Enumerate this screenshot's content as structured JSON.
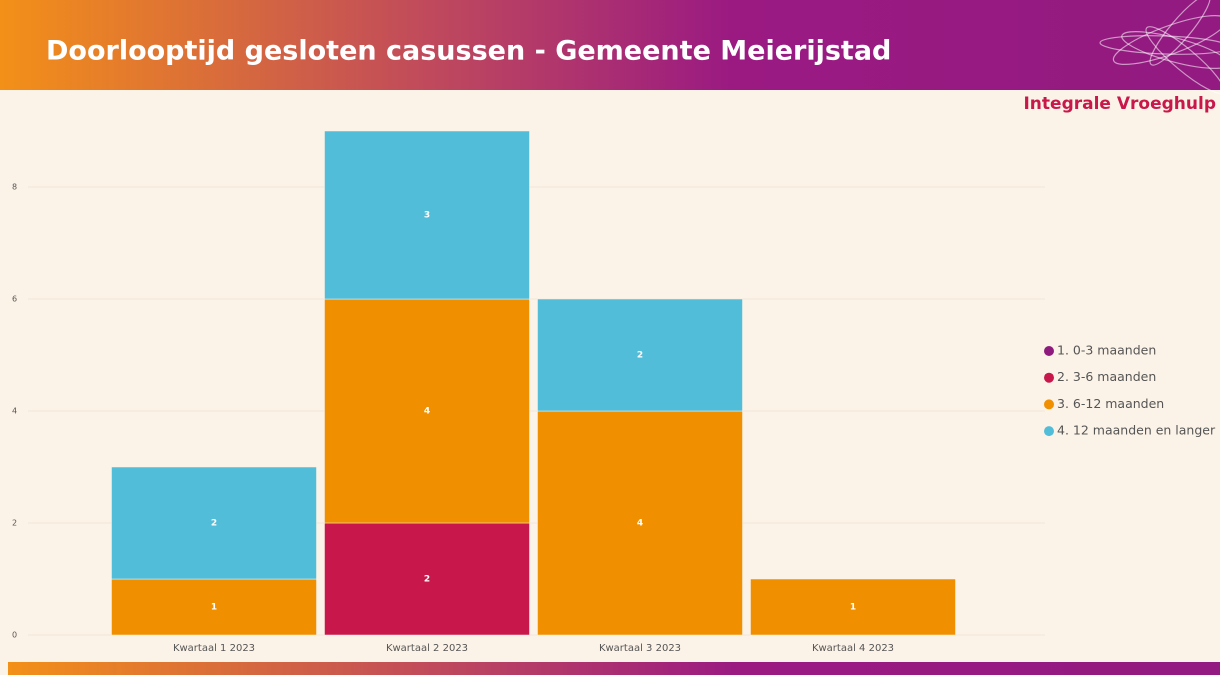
{
  "brand": "Integrale Vroeghulp",
  "chart_data": {
    "type": "stacked_bar",
    "title": "Doorlooptijd gesloten casussen - Gemeente Meierijstad",
    "categories": [
      "Kwartaal 1 2023",
      "Kwartaal 2 2023",
      "Kwartaal 3 2023",
      "Kwartaal 4 2023"
    ],
    "series": [
      {
        "name": "1. 0-3 maanden",
        "color": "#8e1a7e",
        "values": [
          null,
          null,
          null,
          null
        ]
      },
      {
        "name": "2. 3-6 maanden",
        "color": "#c8174a",
        "values": [
          null,
          2,
          null,
          null
        ]
      },
      {
        "name": "3. 6-12 maanden",
        "color": "#f09000",
        "values": [
          1,
          4,
          4,
          1
        ]
      },
      {
        "name": "4. 12 maanden en langer",
        "color": "#52bdd8",
        "values": [
          2,
          3,
          2,
          null
        ]
      }
    ],
    "ylim": [
      0,
      9
    ],
    "yticks": [
      0,
      2,
      4,
      6,
      8
    ],
    "grid": true,
    "legend": "right"
  }
}
